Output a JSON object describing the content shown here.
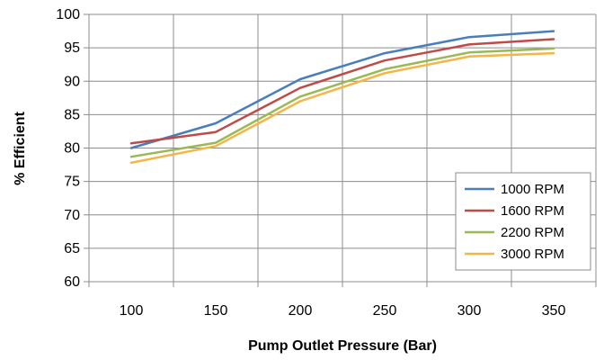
{
  "chart_data": {
    "type": "line",
    "title": "",
    "xlabel": "Pump Outlet Pressure (Bar)",
    "ylabel": "% Efficient",
    "categories": [
      "100",
      "150",
      "200",
      "250",
      "300",
      "350"
    ],
    "ylim": [
      60,
      100
    ],
    "yticks": [
      60,
      65,
      70,
      75,
      80,
      85,
      90,
      95,
      100
    ],
    "grid": true,
    "legend_position": "bottom-right",
    "series": [
      {
        "name": "1000 RPM",
        "color": "#4a7ebb",
        "values": [
          80.0,
          83.7,
          90.3,
          94.2,
          96.6,
          97.5
        ]
      },
      {
        "name": "1600 RPM",
        "color": "#be4b48",
        "values": [
          80.7,
          82.4,
          89.0,
          93.1,
          95.5,
          96.3
        ]
      },
      {
        "name": "2200 RPM",
        "color": "#98b954",
        "values": [
          78.7,
          80.8,
          87.7,
          91.8,
          94.3,
          94.9
        ]
      },
      {
        "name": "3000 RPM",
        "color": "#f5b445",
        "values": [
          77.8,
          80.3,
          87.0,
          91.2,
          93.7,
          94.2
        ]
      }
    ]
  }
}
